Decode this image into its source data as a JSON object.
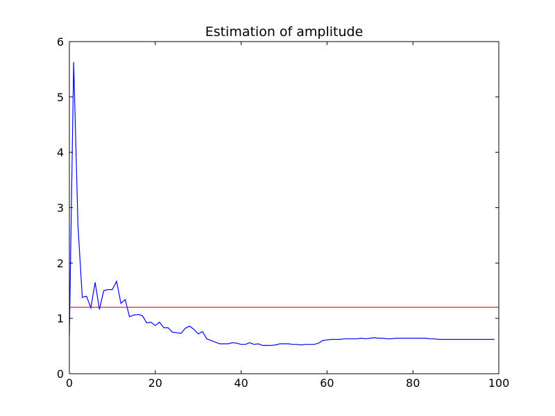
{
  "chart_data": {
    "type": "line",
    "title": "Estimation of amplitude",
    "xlabel": "",
    "ylabel": "",
    "xlim": [
      0,
      100
    ],
    "ylim": [
      0,
      6
    ],
    "xticks": [
      0,
      20,
      40,
      60,
      80,
      100
    ],
    "yticks": [
      0,
      1,
      2,
      3,
      4,
      5,
      6
    ],
    "grid": false,
    "legend": "none",
    "series": [
      {
        "color": "#0000ff",
        "x": [
          0,
          1,
          2,
          3,
          4,
          5,
          6,
          7,
          8,
          9,
          10,
          11,
          12,
          13,
          14,
          15,
          16,
          17,
          18,
          19,
          20,
          21,
          22,
          23,
          24,
          25,
          26,
          27,
          28,
          29,
          30,
          31,
          32,
          33,
          34,
          35,
          36,
          37,
          38,
          39,
          40,
          41,
          42,
          43,
          44,
          45,
          46,
          47,
          48,
          49,
          50,
          51,
          52,
          53,
          54,
          55,
          56,
          57,
          58,
          59,
          60,
          61,
          62,
          63,
          64,
          65,
          66,
          67,
          68,
          69,
          70,
          71,
          72,
          73,
          74,
          75,
          76,
          77,
          78,
          79,
          80,
          81,
          82,
          83,
          84,
          85,
          86,
          87,
          88,
          89,
          90,
          91,
          92,
          93,
          94,
          95,
          96,
          97,
          98,
          99
        ],
        "y": [
          0.7,
          5.63,
          2.68,
          1.38,
          1.4,
          1.19,
          1.65,
          1.16,
          1.5,
          1.52,
          1.52,
          1.67,
          1.27,
          1.34,
          1.03,
          1.06,
          1.07,
          1.05,
          0.92,
          0.93,
          0.87,
          0.93,
          0.83,
          0.83,
          0.75,
          0.74,
          0.73,
          0.82,
          0.86,
          0.8,
          0.72,
          0.76,
          0.63,
          0.6,
          0.57,
          0.54,
          0.54,
          0.54,
          0.56,
          0.55,
          0.53,
          0.53,
          0.56,
          0.53,
          0.54,
          0.51,
          0.51,
          0.51,
          0.52,
          0.54,
          0.54,
          0.54,
          0.53,
          0.53,
          0.52,
          0.53,
          0.53,
          0.53,
          0.55,
          0.6,
          0.61,
          0.62,
          0.62,
          0.62,
          0.63,
          0.63,
          0.63,
          0.63,
          0.64,
          0.63,
          0.64,
          0.65,
          0.64,
          0.64,
          0.63,
          0.63,
          0.64,
          0.64,
          0.64,
          0.64,
          0.64,
          0.64,
          0.64,
          0.64,
          0.63,
          0.63,
          0.62,
          0.62,
          0.62,
          0.62,
          0.62,
          0.62,
          0.62,
          0.62,
          0.62,
          0.62,
          0.62,
          0.62,
          0.62,
          0.62
        ]
      },
      {
        "color": "#ff0000",
        "x": [
          0,
          100
        ],
        "y": [
          1.2,
          1.2
        ]
      }
    ]
  }
}
